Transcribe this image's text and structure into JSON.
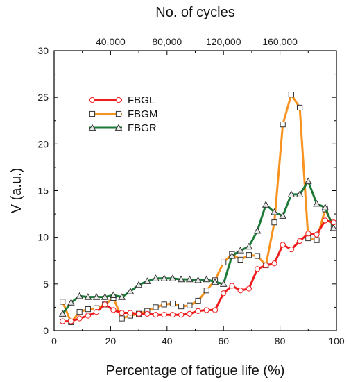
{
  "chart_data": {
    "type": "line",
    "xlabel": "Percentage of fatigue life (%)",
    "ylabel": "V (a.u.)",
    "top_xlabel": "No. of cycles",
    "xlim": [
      0,
      100
    ],
    "ylim": [
      0,
      30
    ],
    "x_ticks": [
      0,
      20,
      40,
      60,
      80,
      100
    ],
    "y_ticks": [
      0,
      5,
      10,
      15,
      20,
      25,
      30
    ],
    "top_x_ticks": [
      {
        "x": 20,
        "label": "40,000"
      },
      {
        "x": 40,
        "label": "80,000"
      },
      {
        "x": 60,
        "label": "120,000"
      },
      {
        "x": 80,
        "label": "160,000"
      }
    ],
    "top_x_tick_labels": [
      "40,000",
      "80,000",
      "120,000",
      "160,000"
    ],
    "legend_position": "upper-left",
    "series": [
      {
        "name": "FBGL",
        "color": "#ee1c1c",
        "marker": "circle",
        "x": [
          3,
          6,
          9,
          12,
          15,
          18,
          21,
          24,
          27,
          30,
          33,
          36,
          39,
          42,
          45,
          48,
          51,
          54,
          57,
          60,
          63,
          66,
          69,
          72,
          75,
          78,
          81,
          84,
          87,
          90,
          93,
          96,
          99
        ],
        "y": [
          1.0,
          1.0,
          1.3,
          1.6,
          2.0,
          2.8,
          2.2,
          1.9,
          1.9,
          1.8,
          1.8,
          1.7,
          1.7,
          1.7,
          1.7,
          1.8,
          2.1,
          2.2,
          2.2,
          4.0,
          4.8,
          4.3,
          4.5,
          6.6,
          7.0,
          7.2,
          9.2,
          8.7,
          9.6,
          10.4,
          10.3,
          11.8,
          11.6
        ]
      },
      {
        "name": "FBGM",
        "color": "#f7931e",
        "marker": "square",
        "x": [
          3,
          6,
          9,
          12,
          15,
          18,
          21,
          24,
          27,
          30,
          33,
          36,
          39,
          42,
          45,
          48,
          51,
          54,
          57,
          60,
          63,
          66,
          69,
          72,
          75,
          78,
          81,
          84,
          87,
          90,
          93,
          96,
          99
        ],
        "y": [
          3.1,
          0.9,
          2.0,
          2.3,
          2.4,
          2.8,
          3.5,
          1.3,
          1.6,
          1.8,
          2.1,
          2.5,
          2.8,
          2.9,
          2.6,
          2.7,
          3.2,
          4.3,
          5.4,
          7.3,
          8.2,
          7.6,
          8.1,
          8.0,
          7.0,
          11.6,
          22.1,
          25.3,
          23.9,
          9.9,
          9.7,
          13.0,
          11.2
        ]
      },
      {
        "name": "FBGR",
        "color": "#1b7a37",
        "marker": "triangle",
        "x": [
          3,
          6,
          9,
          12,
          15,
          18,
          21,
          24,
          27,
          30,
          33,
          36,
          39,
          42,
          45,
          48,
          51,
          54,
          57,
          60,
          63,
          66,
          69,
          72,
          75,
          78,
          81,
          84,
          87,
          90,
          93,
          96,
          99
        ],
        "y": [
          1.8,
          3.0,
          3.7,
          3.6,
          3.6,
          3.6,
          3.8,
          3.6,
          4.2,
          4.9,
          5.3,
          5.6,
          5.6,
          5.6,
          5.5,
          5.5,
          5.4,
          5.5,
          5.2,
          5.0,
          8.0,
          8.6,
          9.0,
          10.7,
          13.5,
          12.7,
          12.3,
          14.6,
          14.6,
          16.0,
          13.6,
          13.2,
          11.0
        ]
      }
    ]
  }
}
